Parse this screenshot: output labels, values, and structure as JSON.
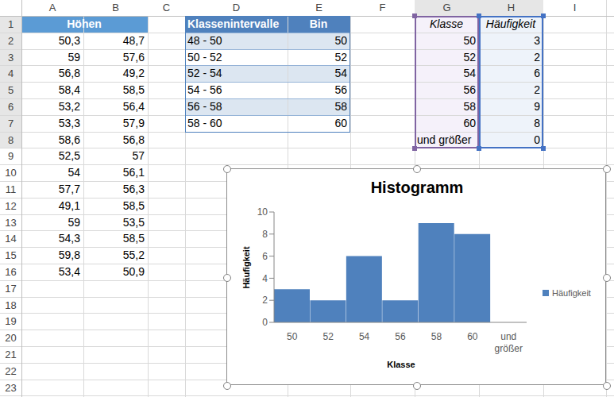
{
  "sheet": {
    "columns": [
      "A",
      "B",
      "C",
      "D",
      "E",
      "F",
      "G",
      "H",
      "I"
    ],
    "rows": [
      1,
      2,
      3,
      4,
      5,
      6,
      7,
      8,
      9,
      10,
      11,
      12,
      13,
      14,
      15,
      16,
      17,
      18,
      19,
      20,
      21,
      22,
      23
    ],
    "cells": {
      "A1": "Höhen",
      "A2": "50,3",
      "A3": "59",
      "A4": "56,8",
      "A5": "58,4",
      "A6": "53,2",
      "A7": "53,3",
      "A8": "58,6",
      "A9": "52,5",
      "A10": "54",
      "A11": "57,7",
      "A12": "49,1",
      "A13": "59",
      "A14": "54,3",
      "A15": "59,8",
      "A16": "53,4",
      "B2": "48,7",
      "B3": "57,6",
      "B4": "49,2",
      "B5": "58,5",
      "B6": "56,4",
      "B7": "57,9",
      "B8": "56,8",
      "B9": "57",
      "B10": "56,1",
      "B11": "56,3",
      "B12": "58,5",
      "B13": "53,5",
      "B14": "58,5",
      "B15": "55,2",
      "B16": "50,9",
      "D1": "Klassenintervalle",
      "D2": "48 - 50",
      "D3": "50 - 52",
      "D4": "52 - 54",
      "D5": "54 - 56",
      "D6": "56 - 58",
      "D7": "58 - 60",
      "E1": "Bin",
      "E2": "50",
      "E3": "52",
      "E4": "54",
      "E5": "56",
      "E6": "58",
      "E7": "60",
      "G1": "Klasse",
      "G2": "50",
      "G3": "52",
      "G4": "54",
      "G5": "56",
      "G6": "58",
      "G7": "60",
      "G8": "und größer",
      "H1": "Häufigkeit",
      "H2": "3",
      "H3": "2",
      "H4": "6",
      "H5": "2",
      "H6": "9",
      "H7": "8",
      "H8": "0"
    }
  },
  "chart_data": {
    "type": "bar",
    "title": "Histogramm",
    "x_label": "Klasse",
    "y_label": "Häufigkeit",
    "categories": [
      "50",
      "52",
      "54",
      "56",
      "58",
      "60",
      "und größer"
    ],
    "series": [
      {
        "name": "Häufigkeit",
        "color": "#4f81bd",
        "values": [
          3,
          2,
          6,
          2,
          9,
          8,
          0
        ]
      }
    ],
    "ylim": [
      0,
      10
    ],
    "yticks": [
      0,
      2,
      4,
      6,
      8,
      10
    ],
    "grid": false,
    "legend": "right"
  }
}
